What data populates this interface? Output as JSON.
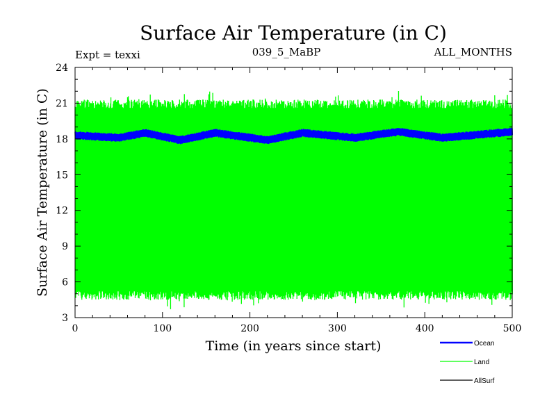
{
  "chart_data": {
    "type": "line",
    "title": "Surface Air Temperature (in C)",
    "subtitle_left": "Expt = texxi",
    "subtitle_center": "039_5_MaBP",
    "subtitle_right": "ALL_MONTHS",
    "xlabel": "Time (in years since start)",
    "ylabel": "Surface Air Temperature (in C)",
    "xlim": [
      0,
      500
    ],
    "ylim": [
      3,
      24
    ],
    "xticks": [
      0,
      100,
      200,
      300,
      400,
      500
    ],
    "yticks": [
      3,
      6,
      9,
      12,
      15,
      18,
      21,
      24
    ],
    "grid": false,
    "legend_position": "bottom-right",
    "series": [
      {
        "name": "Ocean",
        "color": "#0000ff",
        "mean": 18.3,
        "seasonal_min": 17.9,
        "seasonal_max": 18.6,
        "description_points": [
          {
            "x": 0,
            "y": 18.3
          },
          {
            "x": 50,
            "y": 18.1
          },
          {
            "x": 80,
            "y": 18.5
          },
          {
            "x": 120,
            "y": 17.9
          },
          {
            "x": 160,
            "y": 18.5
          },
          {
            "x": 220,
            "y": 17.9
          },
          {
            "x": 260,
            "y": 18.5
          },
          {
            "x": 320,
            "y": 18.1
          },
          {
            "x": 370,
            "y": 18.6
          },
          {
            "x": 420,
            "y": 18.1
          },
          {
            "x": 500,
            "y": 18.6
          }
        ]
      },
      {
        "name": "Land",
        "color": "#00ff00",
        "seasonal_min": 4.5,
        "seasonal_max": 21.3,
        "extreme_min": 3.6,
        "extreme_max": 22.2
      },
      {
        "name": "AllSurf",
        "color": "#000000"
      }
    ]
  }
}
